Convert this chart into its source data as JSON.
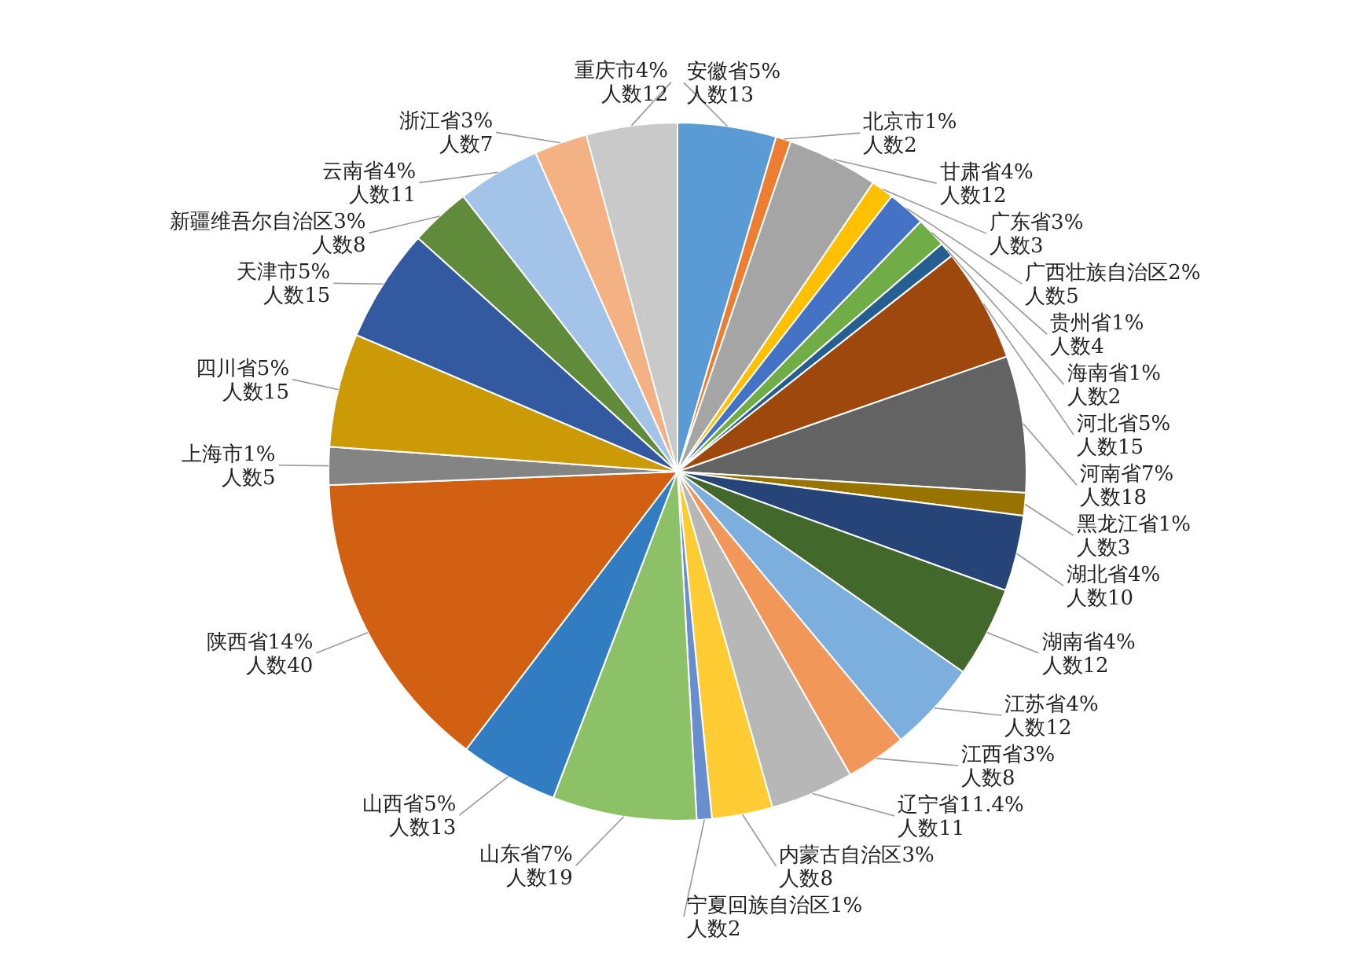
{
  "chart_data": {
    "type": "pie",
    "categories": [
      "安徽省",
      "北京市",
      "甘肃省",
      "广东省",
      "广西壮族自治区",
      "贵州省",
      "海南省",
      "河北省",
      "河南省",
      "黑龙江省",
      "湖北省",
      "湖南省",
      "江苏省",
      "江西省",
      "辽宁省",
      "内蒙古自治区",
      "宁夏回族自治区",
      "山东省",
      "山西省",
      "陕西省",
      "上海市",
      "四川省",
      "天津市",
      "新疆维吾尔自治区",
      "云南省",
      "浙江省",
      "重庆市"
    ],
    "values": [
      13,
      2,
      12,
      3,
      5,
      4,
      2,
      15,
      18,
      3,
      10,
      12,
      12,
      8,
      11,
      8,
      2,
      19,
      13,
      40,
      5,
      15,
      15,
      8,
      11,
      7,
      12
    ],
    "value_labels": [
      "5%\n人数13",
      "1%\n人数2",
      "4%\n人数12",
      "3%\n人数3",
      "2%\n人数5",
      "1%\n人数4",
      "1%\n人数2",
      "5%\n人数15",
      "7%\n人数18",
      "1%\n人数3",
      "4%\n人数10",
      "4%\n人数12",
      "4%\n人数12",
      "3%\n人数8",
      "11.4%\n人数11",
      "3%\n人数8",
      "1%\n人数2",
      "7%\n人数19",
      "5%\n人数13",
      "14%\n人数40",
      "1%\n人数5",
      "5%\n人数15",
      "5%\n人数15",
      "3%\n人数8",
      "4%\n人数11",
      "3%\n人数7",
      "4%\n人数12"
    ],
    "colors": [
      "#5b9bd5",
      "#ed7d31",
      "#a5a5a5",
      "#ffc000",
      "#4472c4",
      "#70ad47",
      "#255e91",
      "#9e480e",
      "#636363",
      "#997300",
      "#264478",
      "#43682b",
      "#7cafdd",
      "#f1975a",
      "#b7b7b7",
      "#ffcd33",
      "#698ed0",
      "#8cc168",
      "#327dc2",
      "#d26012",
      "#848484",
      "#cc9a06",
      "#335aa1",
      "#5f8b3a",
      "#a3c4e8",
      "#f4b183",
      "#c9c9c9"
    ]
  }
}
